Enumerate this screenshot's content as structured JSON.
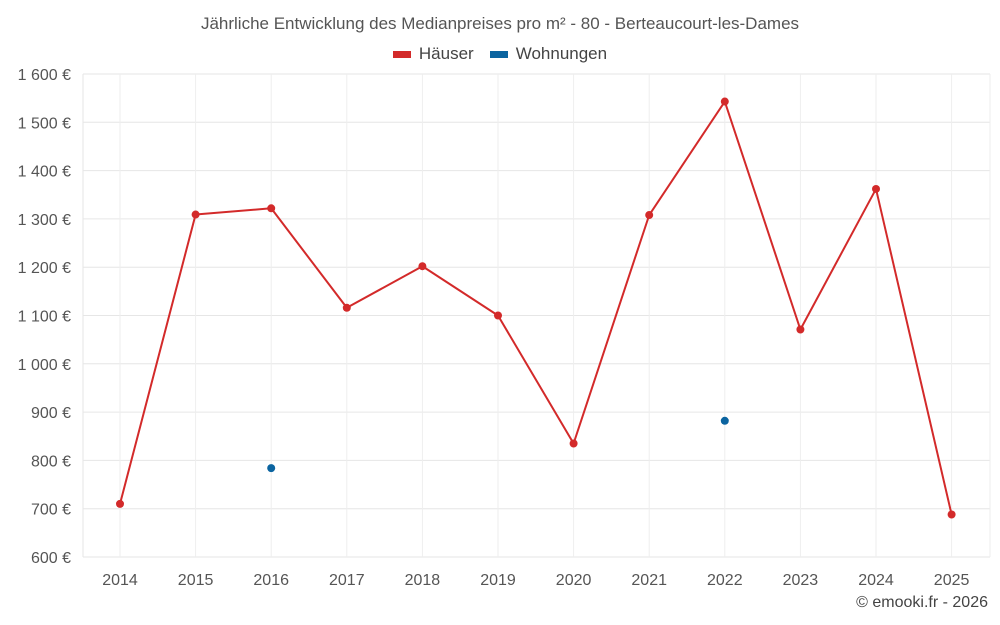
{
  "chart_data": {
    "type": "line",
    "title": "Jährliche Entwicklung des Medianpreises pro m² - 80 - Berteaucourt-les-Dames",
    "categories": [
      "2014",
      "2015",
      "2016",
      "2017",
      "2018",
      "2019",
      "2020",
      "2021",
      "2022",
      "2023",
      "2024",
      "2025"
    ],
    "ylim": [
      600,
      1600
    ],
    "yticks": [
      600,
      700,
      800,
      900,
      1000,
      1100,
      1200,
      1300,
      1400,
      1500,
      1600
    ],
    "ytick_labels": [
      "600 €",
      "700 €",
      "800 €",
      "900 €",
      "1 000 €",
      "1 100 €",
      "1 200 €",
      "1 300 €",
      "1 400 €",
      "1 500 €",
      "1 600 €"
    ],
    "grid": true,
    "legend_position": "top-center",
    "series": [
      {
        "name": "Häuser",
        "color": "#d32a2a",
        "line": true,
        "values": [
          710,
          1309,
          1322,
          1116,
          1202,
          1100,
          835,
          1308,
          1543,
          1071,
          1362,
          688
        ]
      },
      {
        "name": "Wohnungen",
        "color": "#0b64a0",
        "line": false,
        "values": [
          null,
          null,
          784,
          null,
          null,
          null,
          null,
          null,
          882,
          null,
          null,
          null
        ]
      }
    ]
  },
  "credit": "© emooki.fr - 2026"
}
